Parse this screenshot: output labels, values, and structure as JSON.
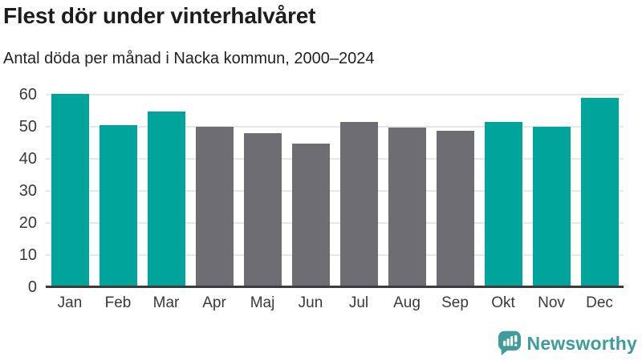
{
  "title": "Flest dör under vinterhalvåret",
  "subtitle": "Antal döda per månad i Nacka kommun, 2000–2024",
  "branding": {
    "logo_text": "Newsworthy",
    "logo_icon": "bar-chart-speech-bubble-icon",
    "logo_color": "#3F9C9B"
  },
  "colors": {
    "winter_bar": "#00A49B",
    "summer_bar": "#6E6D73",
    "gridline": "#E7E7E7",
    "axis_line": "#3C3C3C",
    "tick_label": "#3A3A3A"
  },
  "chart_data": {
    "type": "bar",
    "title": "Flest dör under vinterhalvåret",
    "subtitle": "Antal döda per månad i Nacka kommun, 2000–2024",
    "categories": [
      "Jan",
      "Feb",
      "Mar",
      "Apr",
      "Maj",
      "Jun",
      "Jul",
      "Aug",
      "Sep",
      "Okt",
      "Nov",
      "Dec"
    ],
    "values": [
      60.2,
      50.6,
      54.8,
      50.0,
      48.1,
      44.8,
      51.6,
      49.8,
      48.8,
      51.6,
      50.1,
      59.1
    ],
    "bar_color_groups": [
      "winter",
      "winter",
      "winter",
      "summer",
      "summer",
      "summer",
      "summer",
      "summer",
      "summer",
      "winter",
      "winter",
      "winter"
    ],
    "xlabel": "",
    "ylabel": "",
    "ylim": [
      0,
      62
    ],
    "yticks": [
      0,
      10,
      20,
      30,
      40,
      50,
      60
    ],
    "grid": true,
    "legend": false
  }
}
